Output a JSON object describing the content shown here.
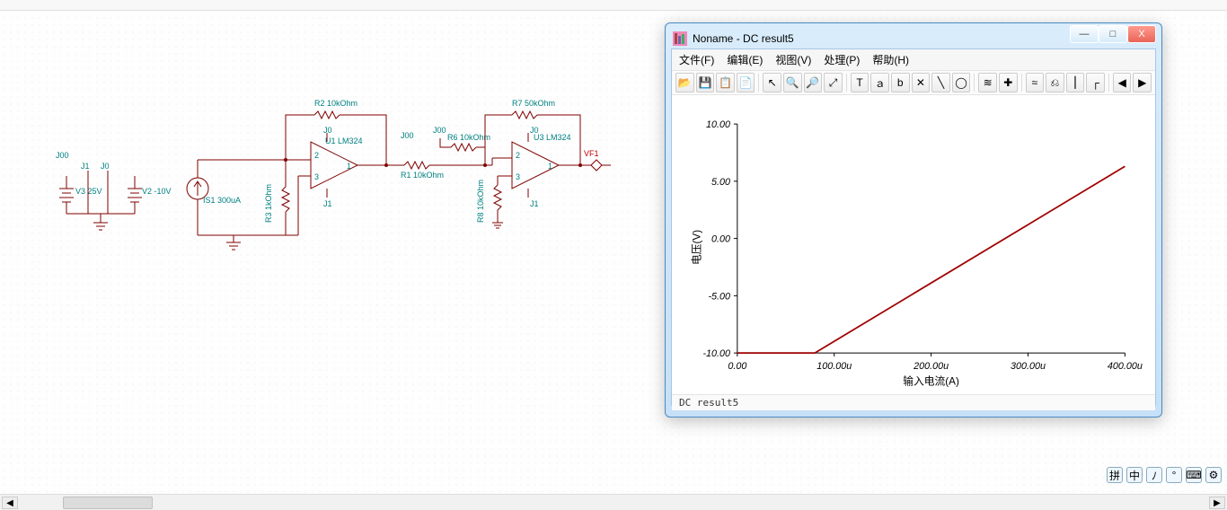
{
  "schematic": {
    "colors": {
      "wire": "#800000",
      "label": "#008080",
      "bg": "#fefefe",
      "dot": "#e8e8e8"
    },
    "labels": {
      "j00_a": "J00",
      "j1_a": "J1",
      "j0_a": "J0",
      "v3": "V3 25V",
      "v2": "V2 -10V",
      "is1": "IS1 300uA",
      "r3": "R3 1kOhm",
      "j0_b": "J0",
      "j1_b": "J1",
      "u1": "U1 LM324",
      "r2": "R2 10kOhm",
      "j00_b": "J00",
      "r1": "R1 10kOhm",
      "r6": "R6 10kOhm",
      "j00_c": "J00",
      "r8": "R8 10kOhm",
      "j0_c": "J0",
      "j1_c": "J1",
      "r7": "R7 50kOhm",
      "u3": "U3 LM324",
      "vf1": "VF1",
      "pin1": "1",
      "pin2": "2",
      "pin3": "3"
    }
  },
  "result_window": {
    "title": "Noname - DC result5",
    "menus": [
      "文件(F)",
      "编辑(E)",
      "视图(V)",
      "处理(P)",
      "帮助(H)"
    ],
    "toolbar_icons": [
      "folder-open-icon",
      "save-icon",
      "copy-icon",
      "paste-icon",
      "sep",
      "pointer-icon",
      "zoom-in-icon",
      "zoom-out-icon",
      "zoom-fit-icon",
      "sep",
      "text-icon",
      "marker-a-icon",
      "marker-b-icon",
      "cursor-x-icon",
      "line-icon",
      "ellipse-icon",
      "sep",
      "plot-style-a-icon",
      "plot-style-b-icon",
      "sep",
      "waves-icon",
      "filter-icon",
      "split-icon",
      "edge-icon",
      "sep",
      "arrow-left-icon",
      "arrow-right-icon"
    ],
    "toolbar_glyphs": {
      "folder-open-icon": "📂",
      "save-icon": "💾",
      "copy-icon": "📋",
      "paste-icon": "📄",
      "pointer-icon": "↖",
      "zoom-in-icon": "🔍",
      "zoom-out-icon": "🔎",
      "zoom-fit-icon": "⤢",
      "text-icon": "T",
      "marker-a-icon": "ａ",
      "marker-b-icon": "b",
      "cursor-x-icon": "✕",
      "line-icon": "╲",
      "ellipse-icon": "◯",
      "plot-style-a-icon": "≋",
      "plot-style-b-icon": "✚",
      "waves-icon": "≈",
      "filter-icon": "⎌",
      "split-icon": "⎮",
      "edge-icon": "┌",
      "arrow-left-icon": "◀",
      "arrow-right-icon": "▶"
    },
    "status": "DC result5",
    "chart": {
      "type": "line",
      "xlabel": "输入电流(A)",
      "ylabel": "电压(V)",
      "xlim": [
        0,
        400
      ],
      "ylim": [
        -10,
        10
      ],
      "xticks": [
        0,
        100,
        200,
        300,
        400
      ],
      "xtick_labels": [
        "0.00",
        "100.00u",
        "200.00u",
        "300.00u",
        "400.00u"
      ],
      "yticks": [
        -10,
        -5,
        0,
        5,
        10
      ],
      "ytick_labels": [
        "-10.00",
        "-5.00",
        "0.00",
        "5.00",
        "10.00"
      ],
      "series_color": "#a00000",
      "axis_color": "#000000",
      "background_color": "#ffffff",
      "label_fontsize": 12,
      "tick_fontsize": 11,
      "points_x": [
        0,
        80,
        400
      ],
      "points_y": [
        -10,
        -10,
        6.3
      ]
    }
  },
  "ime_items": [
    "拼",
    "中",
    "ﾉ",
    "°",
    "⌨",
    "⚙"
  ],
  "window_buttons": {
    "min": "—",
    "max": "□",
    "close": "X"
  }
}
